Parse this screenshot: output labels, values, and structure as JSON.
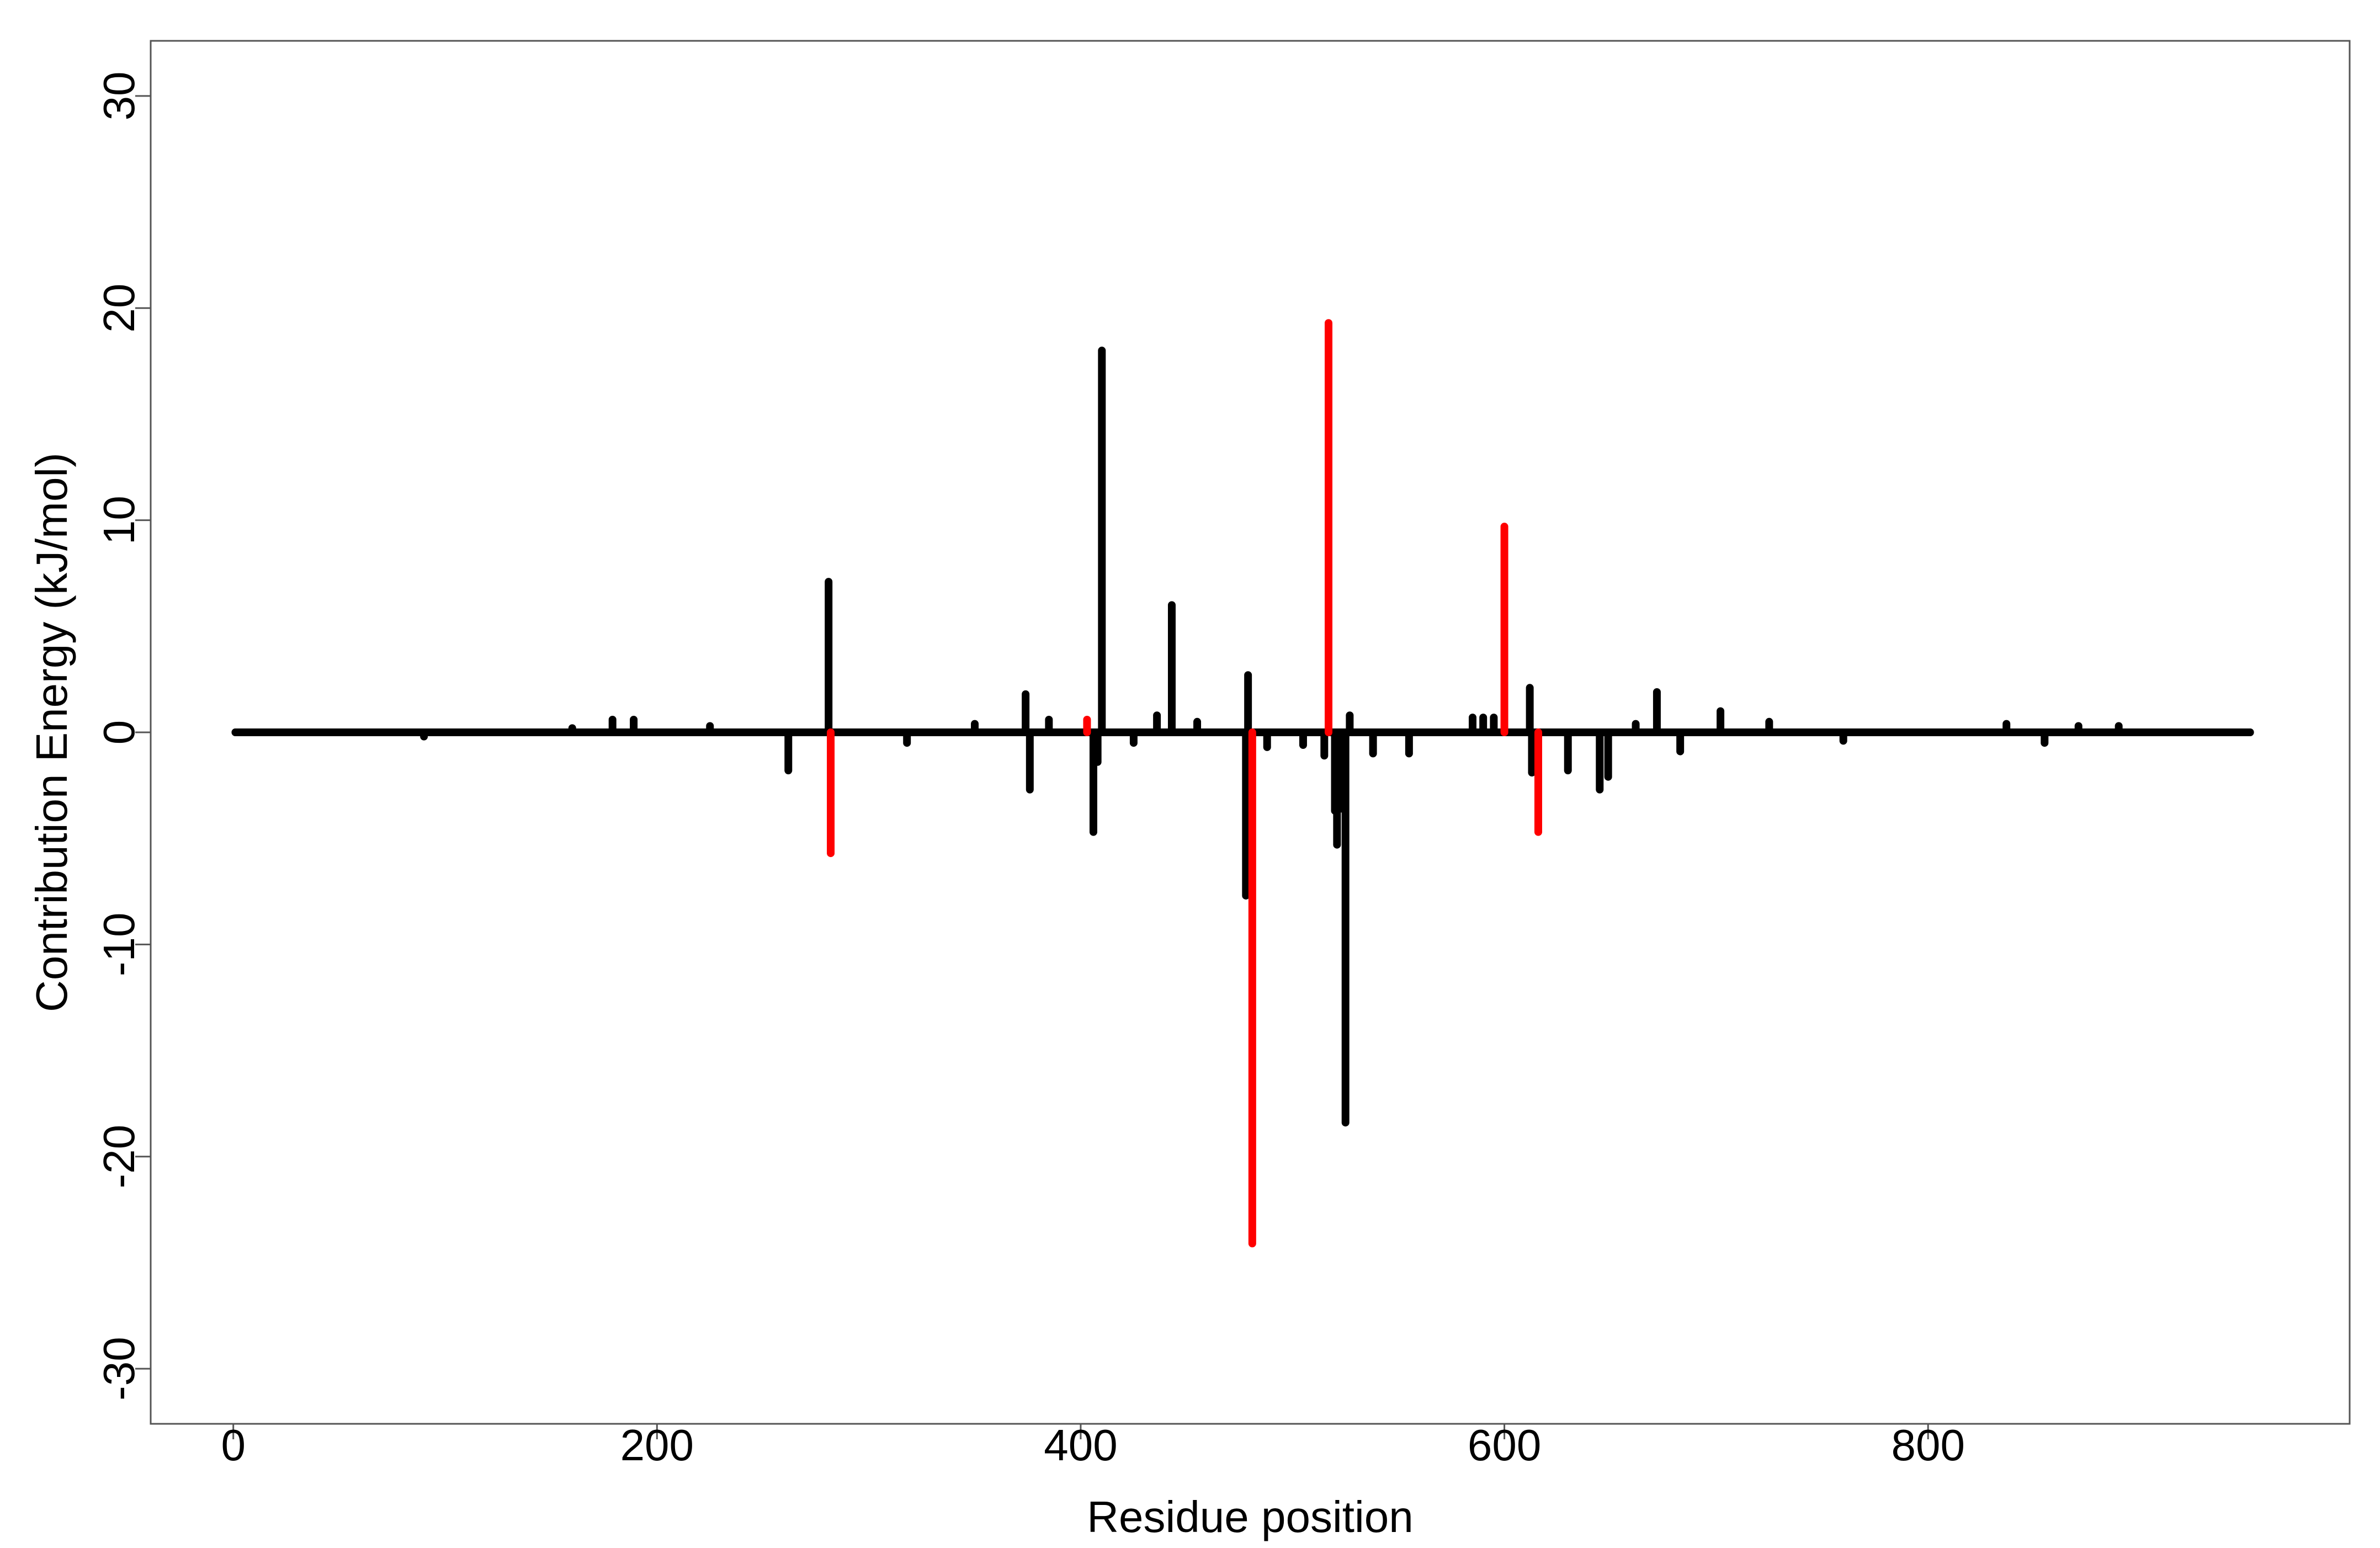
{
  "chart_data": {
    "type": "stem",
    "xlabel": "Residue position",
    "ylabel": "Contribution Energy (kJ/mol)",
    "xlim": [
      -39,
      999
    ],
    "ylim": [
      -32.6,
      32.6
    ],
    "xticks": [
      0,
      200,
      400,
      600,
      800
    ],
    "yticks": [
      -30,
      -20,
      -10,
      0,
      10,
      20,
      30
    ],
    "grid": false,
    "series": [
      {
        "color": "#000000",
        "x": [
          1,
          90,
          160,
          179,
          189,
          225,
          262,
          281,
          318,
          350,
          374,
          376,
          385,
          406,
          408,
          410,
          425,
          436,
          443,
          455,
          478,
          479,
          488,
          505,
          515,
          520,
          521,
          523,
          525,
          527,
          538,
          555,
          585,
          590,
          595,
          612,
          613,
          630,
          645,
          649,
          662,
          672,
          683,
          702,
          725,
          760,
          837,
          855,
          871,
          890,
          952
        ],
        "values": [
          0,
          -0.2,
          0.2,
          0.6,
          0.6,
          0.3,
          -1.8,
          7.1,
          -0.5,
          0.4,
          1.8,
          -2.7,
          0.6,
          -4.7,
          -1.4,
          18.0,
          -0.5,
          0.8,
          6.0,
          0.5,
          -7.7,
          2.7,
          -0.7,
          -0.6,
          -1.1,
          -3.7,
          -5.3,
          -3.6,
          -18.4,
          0.8,
          -1.0,
          -1.0,
          0.7,
          0.7,
          0.7,
          2.1,
          -1.9,
          -1.8,
          -2.7,
          -2.1,
          0.4,
          1.9,
          -0.9,
          1.0,
          0.5,
          -0.4,
          0.4,
          -0.5,
          0.3,
          0.3,
          0
        ]
      },
      {
        "color": "#ff0000",
        "x": [
          282,
          403,
          481,
          517,
          600,
          616
        ],
        "values": [
          -5.7,
          0.6,
          -24.1,
          19.3,
          9.7,
          -4.7
        ]
      }
    ]
  }
}
